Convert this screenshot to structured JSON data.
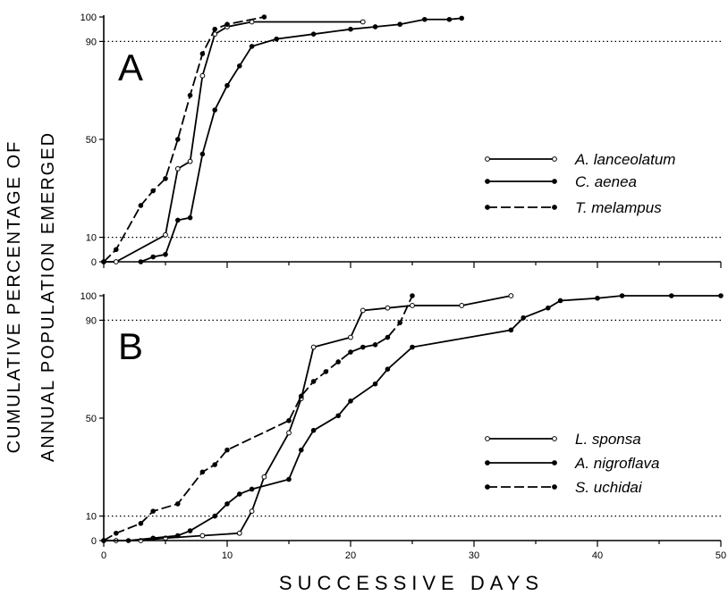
{
  "y_axis_label_line1": "CUMULATIVE PERCENTAGE OF",
  "y_axis_label_line2": "ANNUAL POPULATION EMERGED",
  "x_axis_label": "SUCCESSIVE DAYS",
  "chart_data": [
    {
      "type": "line",
      "panel_label": "A",
      "xlim": [
        0,
        50
      ],
      "ylim": [
        0,
        100
      ],
      "y_ticks": [
        0,
        10,
        50,
        90,
        100
      ],
      "reference_lines": [
        10,
        90
      ],
      "grid": false,
      "legend_position": "right",
      "series": [
        {
          "name": "A. lanceolatum",
          "marker": "open-circle",
          "dash": "solid",
          "points": [
            [
              0,
              0
            ],
            [
              1,
              0
            ],
            [
              5,
              11
            ],
            [
              6,
              38
            ],
            [
              7,
              41
            ],
            [
              8,
              76
            ],
            [
              9,
              93
            ],
            [
              10,
              96
            ],
            [
              12,
              98
            ],
            [
              21,
              98
            ]
          ]
        },
        {
          "name": "C. aenea",
          "marker": "filled-circle",
          "dash": "solid",
          "points": [
            [
              3,
              0
            ],
            [
              4,
              2
            ],
            [
              5,
              3
            ],
            [
              6,
              17
            ],
            [
              7,
              18
            ],
            [
              8,
              44
            ],
            [
              9,
              62
            ],
            [
              10,
              72
            ],
            [
              11,
              80
            ],
            [
              12,
              88
            ],
            [
              14,
              91
            ],
            [
              17,
              93
            ],
            [
              20,
              95
            ],
            [
              22,
              96
            ],
            [
              24,
              97
            ],
            [
              26,
              99
            ],
            [
              28,
              99
            ],
            [
              29,
              99.5
            ]
          ]
        },
        {
          "name": "T. melampus",
          "marker": "filled-circle",
          "dash": "dashed",
          "points": [
            [
              0,
              0
            ],
            [
              1,
              5
            ],
            [
              3,
              23
            ],
            [
              4,
              29
            ],
            [
              5,
              34
            ],
            [
              6,
              50
            ],
            [
              7,
              68
            ],
            [
              8,
              85
            ],
            [
              9,
              95
            ],
            [
              10,
              97
            ],
            [
              13,
              100
            ]
          ]
        }
      ]
    },
    {
      "type": "line",
      "panel_label": "B",
      "xlim": [
        0,
        50
      ],
      "ylim": [
        0,
        100
      ],
      "x_ticks": [
        0,
        10,
        20,
        30,
        40,
        50
      ],
      "y_ticks": [
        0,
        10,
        50,
        90,
        100
      ],
      "reference_lines": [
        10,
        90
      ],
      "grid": false,
      "legend_position": "right",
      "series": [
        {
          "name": "L. sponsa",
          "marker": "open-circle",
          "dash": "solid",
          "points": [
            [
              0,
              0
            ],
            [
              1,
              0
            ],
            [
              3,
              0
            ],
            [
              5,
              1
            ],
            [
              8,
              2
            ],
            [
              11,
              3
            ],
            [
              12,
              12
            ],
            [
              13,
              26
            ],
            [
              15,
              44
            ],
            [
              16,
              58
            ],
            [
              17,
              79
            ],
            [
              20,
              83
            ],
            [
              21,
              94
            ],
            [
              23,
              95
            ],
            [
              25,
              96
            ],
            [
              29,
              96
            ],
            [
              33,
              100
            ]
          ]
        },
        {
          "name": "A. nigroflava",
          "marker": "filled-circle",
          "dash": "solid",
          "points": [
            [
              0,
              0
            ],
            [
              2,
              0
            ],
            [
              4,
              1
            ],
            [
              6,
              2
            ],
            [
              7,
              4
            ],
            [
              9,
              10
            ],
            [
              10,
              15
            ],
            [
              11,
              19
            ],
            [
              12,
              21
            ],
            [
              15,
              25
            ],
            [
              16,
              37
            ],
            [
              17,
              45
            ],
            [
              19,
              51
            ],
            [
              20,
              57
            ],
            [
              22,
              64
            ],
            [
              23,
              70
            ],
            [
              25,
              79
            ],
            [
              33,
              86
            ],
            [
              34,
              91
            ],
            [
              36,
              95
            ],
            [
              37,
              98
            ],
            [
              40,
              99
            ],
            [
              42,
              100
            ],
            [
              46,
              100
            ],
            [
              50,
              100
            ]
          ]
        },
        {
          "name": "S. uchidai",
          "marker": "filled-circle",
          "dash": "dashed",
          "points": [
            [
              0,
              0
            ],
            [
              1,
              3
            ],
            [
              3,
              7
            ],
            [
              4,
              12
            ],
            [
              6,
              15
            ],
            [
              8,
              28
            ],
            [
              9,
              31
            ],
            [
              10,
              37
            ],
            [
              15,
              49
            ],
            [
              16,
              59
            ],
            [
              17,
              65
            ],
            [
              18,
              69
            ],
            [
              19,
              73
            ],
            [
              20,
              77
            ],
            [
              21,
              79
            ],
            [
              22,
              80
            ],
            [
              23,
              83
            ],
            [
              24,
              89
            ],
            [
              25,
              100
            ]
          ]
        }
      ]
    }
  ]
}
